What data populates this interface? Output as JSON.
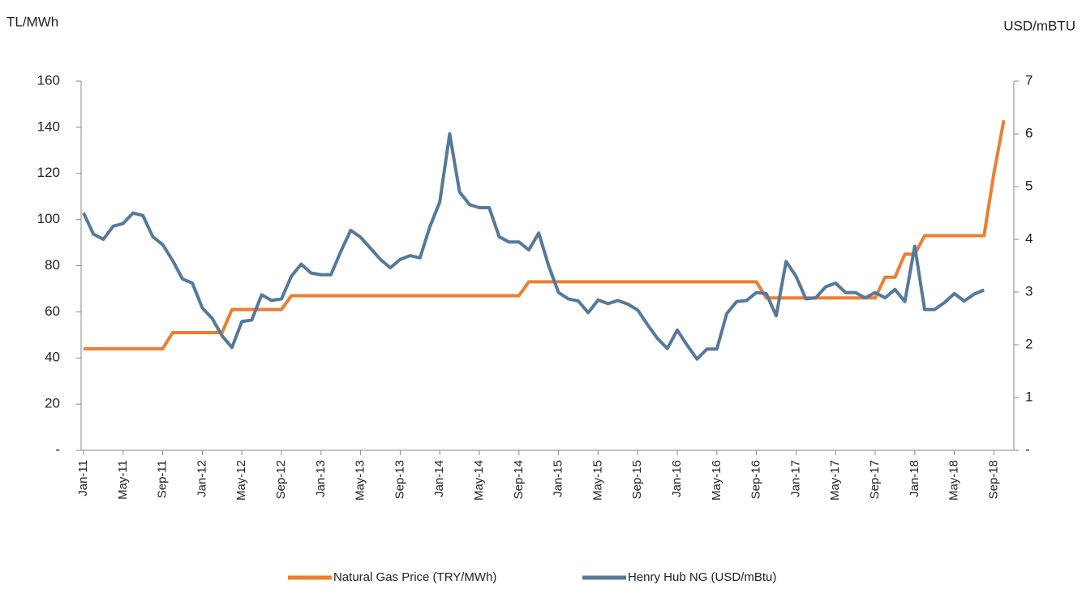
{
  "chart_data": {
    "type": "line",
    "y_label": "TL/MWh",
    "y2_label": "USD/mBTU",
    "categories": [
      "Jan-11",
      null,
      null,
      null,
      "May-11",
      null,
      null,
      null,
      "Sep-11",
      null,
      null,
      null,
      "Jan-12",
      null,
      null,
      null,
      "May-12",
      null,
      null,
      null,
      "Sep-12",
      null,
      null,
      null,
      "Jan-13",
      null,
      null,
      null,
      "May-13",
      null,
      null,
      null,
      "Sep-13",
      null,
      null,
      null,
      "Jan-14",
      null,
      null,
      null,
      "May-14",
      null,
      null,
      null,
      "Sep-14",
      null,
      null,
      null,
      "Jan-15",
      null,
      null,
      null,
      "May-15",
      null,
      null,
      null,
      "Sep-15",
      null,
      null,
      null,
      "Jan-16",
      null,
      null,
      null,
      "May-16",
      null,
      null,
      null,
      "Sep-16",
      null,
      null,
      null,
      "Jan-17",
      null,
      null,
      null,
      "May-17",
      null,
      null,
      null,
      "Sep-17",
      null,
      null,
      null,
      "Jan-18",
      null,
      null,
      null,
      "May-18",
      null,
      null,
      null,
      "Sep-18",
      null
    ],
    "series": [
      {
        "name": "Natural Gas Price (TRY/MWh)",
        "color": "#ed7d31",
        "values": [
          44,
          44,
          44,
          44,
          44,
          44,
          44,
          44,
          44,
          51,
          51,
          51,
          51,
          51,
          51,
          61,
          61,
          61,
          61,
          61,
          61,
          67,
          67,
          67,
          67,
          67,
          67,
          67,
          67,
          67,
          67,
          67,
          67,
          67,
          67,
          67,
          67,
          67,
          67,
          67,
          67,
          67,
          67,
          67,
          67,
          73,
          73,
          73,
          73,
          73,
          73,
          73,
          73,
          73,
          73,
          73,
          73,
          73,
          73,
          73,
          73,
          73,
          73,
          73,
          73,
          73,
          73,
          73,
          73,
          66,
          66,
          66,
          66,
          66,
          66,
          66,
          66,
          66,
          66,
          66,
          66,
          75,
          75,
          85,
          85,
          93,
          93,
          93,
          93,
          93,
          93,
          93,
          120,
          143
        ]
      },
      {
        "name": "Henry Hub NG (USD/mBtu)",
        "color": "#56799b",
        "axis": "y2",
        "values": [
          4.5,
          4.1,
          4.0,
          4.25,
          4.3,
          4.5,
          4.45,
          4.05,
          3.9,
          3.6,
          3.25,
          3.17,
          2.7,
          2.5,
          2.17,
          1.95,
          2.44,
          2.47,
          2.95,
          2.84,
          2.87,
          3.3,
          3.53,
          3.36,
          3.33,
          3.33,
          3.77,
          4.17,
          4.04,
          3.83,
          3.62,
          3.46,
          3.62,
          3.69,
          3.65,
          4.24,
          4.71,
          6.0,
          4.9,
          4.66,
          4.6,
          4.6,
          4.05,
          3.95,
          3.95,
          3.8,
          4.12,
          3.5,
          2.99,
          2.87,
          2.83,
          2.61,
          2.85,
          2.78,
          2.84,
          2.77,
          2.66,
          2.38,
          2.12,
          1.93,
          2.28,
          1.99,
          1.73,
          1.92,
          1.92,
          2.59,
          2.82,
          2.84,
          2.99,
          2.97,
          2.55,
          3.58,
          3.3,
          2.87,
          2.89,
          3.1,
          3.17,
          2.99,
          2.99,
          2.89,
          2.99,
          2.89,
          3.05,
          2.82,
          3.87,
          2.67,
          2.67,
          2.8,
          2.97,
          2.83,
          2.96,
          3.04,
          null,
          null
        ]
      }
    ],
    "ylim": [
      0,
      160
    ],
    "yticks": [
      {
        "value": 0,
        "label": "-"
      },
      20,
      40,
      60,
      80,
      100,
      120,
      140,
      160
    ],
    "y2lim": [
      0,
      7
    ],
    "y2ticks": [
      {
        "value": 0,
        "label": "-"
      },
      1,
      2,
      3,
      4,
      5,
      6,
      7
    ],
    "grid": false,
    "legend": "bottom"
  }
}
